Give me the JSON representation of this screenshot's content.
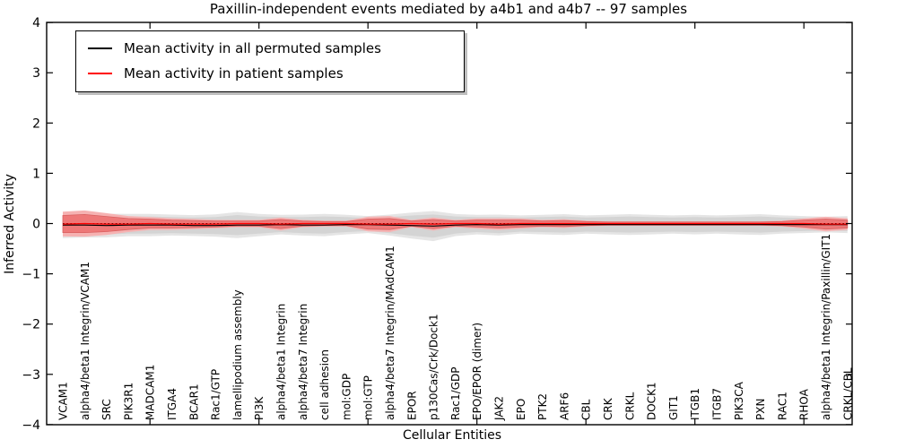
{
  "title": "Paxillin-independent events mediated by a4b1 and a4b7 -- 97 samples",
  "axes": {
    "x_label": "Cellular Entities",
    "y_label": "Inferred Activity",
    "y_ticks": [
      4,
      3,
      2,
      1,
      0,
      -1,
      -2,
      -3,
      -4
    ],
    "ylim": [
      -4,
      4
    ]
  },
  "legend": {
    "items": [
      {
        "label": "Mean activity in all permuted samples",
        "color": "#000000"
      },
      {
        "label": "Mean activity in patient samples",
        "color": "#ff0000"
      }
    ]
  },
  "colors": {
    "background": "#ffffff",
    "permuted_band_inner": "#d4d4d4",
    "permuted_band_outer": "#e5e5e5",
    "patient_band_inner": "#ee7878",
    "patient_band_outer": "#f6b2b2",
    "patient_band_edge": "#d86060",
    "permuted_line": "#000000",
    "patient_line": "#ff0000"
  },
  "chart_data": {
    "type": "line",
    "title": "Paxillin-independent events mediated by a4b1 and a4b7 -- 97 samples",
    "xlabel": "Cellular Entities",
    "ylabel": "Inferred Activity",
    "ylim": [
      -4,
      4
    ],
    "grid": false,
    "legend_position": "upper left",
    "zero_line": {
      "y": 0,
      "style": "dotted",
      "color": "#000000"
    },
    "categories": [
      "VCAM1",
      "alpha4/beta1 Integrin/VCAM1",
      "SRC",
      "PIK3R1",
      "MADCAM1",
      "ITGA4",
      "BCAR1",
      "Rac1/GTP",
      "lamellipodium assembly",
      "PI3K",
      "alpha4/beta1 Integrin",
      "alpha4/beta7 Integrin",
      "cell adhesion",
      "mol:GDP",
      "mol:GTP",
      "alpha4/beta7 Integrin/MAdCAM1",
      "EPOR",
      "p130Cas/Crk/Dock1",
      "Rac1/GDP",
      "EPO/EPOR (dimer)",
      "JAK2",
      "EPO",
      "PTK2",
      "ARF6",
      "CBL",
      "CRK",
      "CRKL",
      "DOCK1",
      "GIT1",
      "ITGB1",
      "ITGB7",
      "PIK3CA",
      "PXN",
      "RAC1",
      "RHOA",
      "alpha4/beta1 Integrin/Paxillin/GIT1",
      "CRKL/CBL"
    ],
    "series": [
      {
        "name": "Mean activity in all permuted samples",
        "color": "#000000",
        "values": [
          -0.03,
          -0.03,
          -0.04,
          -0.03,
          -0.03,
          -0.03,
          -0.04,
          -0.04,
          -0.03,
          -0.03,
          -0.02,
          -0.03,
          -0.03,
          -0.02,
          -0.02,
          -0.03,
          -0.04,
          -0.05,
          -0.03,
          -0.02,
          -0.03,
          -0.02,
          -0.02,
          -0.02,
          -0.02,
          -0.02,
          -0.02,
          -0.02,
          -0.02,
          -0.02,
          -0.02,
          -0.02,
          -0.02,
          -0.02,
          -0.02,
          -0.02,
          -0.02
        ],
        "spread": [
          0.2,
          0.19,
          0.18,
          0.17,
          0.17,
          0.16,
          0.16,
          0.17,
          0.2,
          0.17,
          0.15,
          0.16,
          0.17,
          0.15,
          0.13,
          0.16,
          0.2,
          0.23,
          0.17,
          0.15,
          0.16,
          0.14,
          0.15,
          0.16,
          0.14,
          0.15,
          0.16,
          0.15,
          0.14,
          0.15,
          0.14,
          0.15,
          0.16,
          0.14,
          0.13,
          0.12,
          0.13
        ]
      },
      {
        "name": "Mean activity in patient samples",
        "color": "#ff0000",
        "values": [
          -0.01,
          0.0,
          -0.01,
          -0.01,
          0.0,
          -0.01,
          -0.01,
          -0.01,
          0.0,
          0.0,
          -0.01,
          0.0,
          0.0,
          0.0,
          -0.01,
          -0.01,
          0.0,
          -0.01,
          0.0,
          0.0,
          -0.01,
          0.0,
          0.0,
          0.0,
          0.0,
          0.0,
          0.0,
          0.0,
          0.0,
          0.0,
          0.0,
          0.0,
          0.0,
          0.0,
          0.0,
          -0.01,
          -0.01
        ],
        "spread": [
          0.17,
          0.18,
          0.15,
          0.11,
          0.09,
          0.08,
          0.07,
          0.06,
          0.05,
          0.05,
          0.09,
          0.05,
          0.04,
          0.04,
          0.1,
          0.11,
          0.05,
          0.09,
          0.05,
          0.07,
          0.08,
          0.07,
          0.05,
          0.06,
          0.04,
          0.03,
          0.03,
          0.03,
          0.03,
          0.03,
          0.03,
          0.03,
          0.03,
          0.04,
          0.07,
          0.1,
          0.08
        ]
      }
    ],
    "samples_count": 97
  }
}
